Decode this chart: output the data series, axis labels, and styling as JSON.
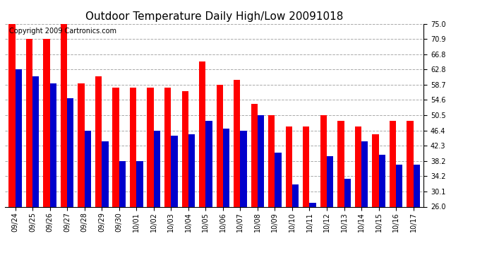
{
  "title": "Outdoor Temperature Daily High/Low 20091018",
  "copyright": "Copyright 2009 Cartronics.com",
  "dates": [
    "09/24",
    "09/25",
    "09/26",
    "09/27",
    "09/28",
    "09/29",
    "09/30",
    "10/01",
    "10/02",
    "10/03",
    "10/04",
    "10/05",
    "10/06",
    "10/07",
    "10/08",
    "10/09",
    "10/10",
    "10/11",
    "10/12",
    "10/13",
    "10/14",
    "10/15",
    "10/16",
    "10/17"
  ],
  "highs": [
    75.0,
    70.9,
    70.9,
    75.0,
    59.0,
    61.0,
    57.9,
    57.9,
    57.9,
    57.9,
    57.0,
    65.0,
    58.7,
    60.0,
    53.5,
    50.5,
    47.5,
    47.5,
    50.5,
    49.0,
    47.5,
    45.5,
    49.0,
    49.0
  ],
  "lows": [
    62.8,
    61.0,
    59.0,
    55.0,
    46.4,
    43.5,
    38.2,
    38.2,
    46.4,
    45.0,
    45.5,
    49.0,
    47.0,
    46.4,
    50.5,
    40.5,
    32.0,
    27.0,
    39.5,
    33.5,
    43.5,
    40.0,
    37.2,
    37.2
  ],
  "high_color": "#ff0000",
  "low_color": "#0000cc",
  "background_color": "#ffffff",
  "grid_color": "#aaaaaa",
  "ylim": [
    26.0,
    75.0
  ],
  "yticks": [
    26.0,
    30.1,
    34.2,
    38.2,
    42.3,
    46.4,
    50.5,
    54.6,
    58.7,
    62.8,
    66.8,
    70.9,
    75.0
  ],
  "title_fontsize": 11,
  "copyright_fontsize": 7,
  "tick_fontsize": 7,
  "bar_width": 0.38
}
